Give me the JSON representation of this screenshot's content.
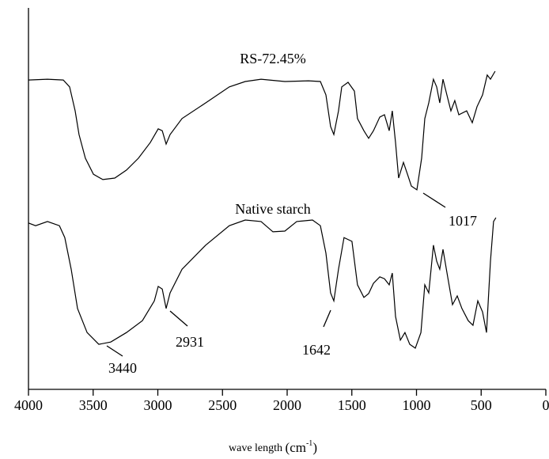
{
  "chart_data": {
    "type": "line",
    "xlim": [
      4000,
      0
    ],
    "xticks": [
      4000,
      3500,
      3000,
      2500,
      2000,
      1500,
      1000,
      500,
      0
    ],
    "ylim": [
      0,
      100
    ],
    "x_label": {
      "text": "wave length",
      "unit": "(cm",
      "exp": "-1",
      "close": ")"
    },
    "annotations": [
      "1017",
      "3440",
      "2931",
      "1642"
    ],
    "series": [
      {
        "name": "RS-72.45%",
        "color": "#000000",
        "x": [
          4000,
          3853,
          3731,
          3682,
          3639,
          3609,
          3560,
          3498,
          3425,
          3333,
          3242,
          3150,
          3058,
          2997,
          2966,
          2936,
          2905,
          2813,
          2630,
          2447,
          2324,
          2202,
          2018,
          1835,
          1743,
          1700,
          1664,
          1639,
          1603,
          1578,
          1529,
          1480,
          1456,
          1407,
          1370,
          1333,
          1284,
          1248,
          1211,
          1187,
          1162,
          1138,
          1101,
          1070,
          1040,
          997,
          960,
          936,
          905,
          869,
          844,
          820,
          795,
          765,
          734,
          704,
          673,
          612,
          569,
          532,
          489,
          453,
          428,
          392
        ],
        "values": [
          81.1,
          81.3,
          81.1,
          79.3,
          73.0,
          66.8,
          60.6,
          56.4,
          55.0,
          55.4,
          57.5,
          60.6,
          64.7,
          68.3,
          67.8,
          64.3,
          66.8,
          71.0,
          75.1,
          79.3,
          80.7,
          81.3,
          80.7,
          80.9,
          80.7,
          77.2,
          68.9,
          66.8,
          73.0,
          79.3,
          80.5,
          78.2,
          71.0,
          67.8,
          65.8,
          67.8,
          71.4,
          72.0,
          67.8,
          73.0,
          64.7,
          55.4,
          59.5,
          56.4,
          53.3,
          52.3,
          60.6,
          71.0,
          75.1,
          81.3,
          79.3,
          75.1,
          81.3,
          77.2,
          73.0,
          75.7,
          72.0,
          73.0,
          69.9,
          74.1,
          77.2,
          82.4,
          81.3,
          83.4
        ]
      },
      {
        "name": "Native starch",
        "color": "#000000",
        "x": [
          4000,
          3945,
          3853,
          3761,
          3719,
          3670,
          3621,
          3547,
          3456,
          3364,
          3242,
          3119,
          3027,
          2997,
          2966,
          2936,
          2905,
          2813,
          2630,
          2447,
          2324,
          2202,
          2110,
          2018,
          1926,
          1804,
          1743,
          1700,
          1664,
          1639,
          1603,
          1560,
          1499,
          1456,
          1407,
          1370,
          1333,
          1284,
          1248,
          1211,
          1187,
          1162,
          1125,
          1089,
          1052,
          1009,
          966,
          936,
          905,
          869,
          844,
          820,
          795,
          759,
          722,
          685,
          649,
          600,
          563,
          526,
          489,
          459,
          428,
          404,
          386
        ],
        "values": [
          43.6,
          42.9,
          44.0,
          42.9,
          39.8,
          31.5,
          21.2,
          14.9,
          11.8,
          12.4,
          14.9,
          18.0,
          23.2,
          27.0,
          26.3,
          21.2,
          25.3,
          31.5,
          37.8,
          42.9,
          44.4,
          44.0,
          41.3,
          41.5,
          44.0,
          44.4,
          42.9,
          35.7,
          25.3,
          23.2,
          31.5,
          39.8,
          38.8,
          27.4,
          24.1,
          25.1,
          27.8,
          29.5,
          29.0,
          27.4,
          30.5,
          19.1,
          12.9,
          14.9,
          11.8,
          10.8,
          14.9,
          27.4,
          25.3,
          37.8,
          33.6,
          31.5,
          36.7,
          29.5,
          22.2,
          24.5,
          21.2,
          18.0,
          16.8,
          23.2,
          20.3,
          14.9,
          33.6,
          44.0,
          45.0
        ]
      }
    ]
  }
}
